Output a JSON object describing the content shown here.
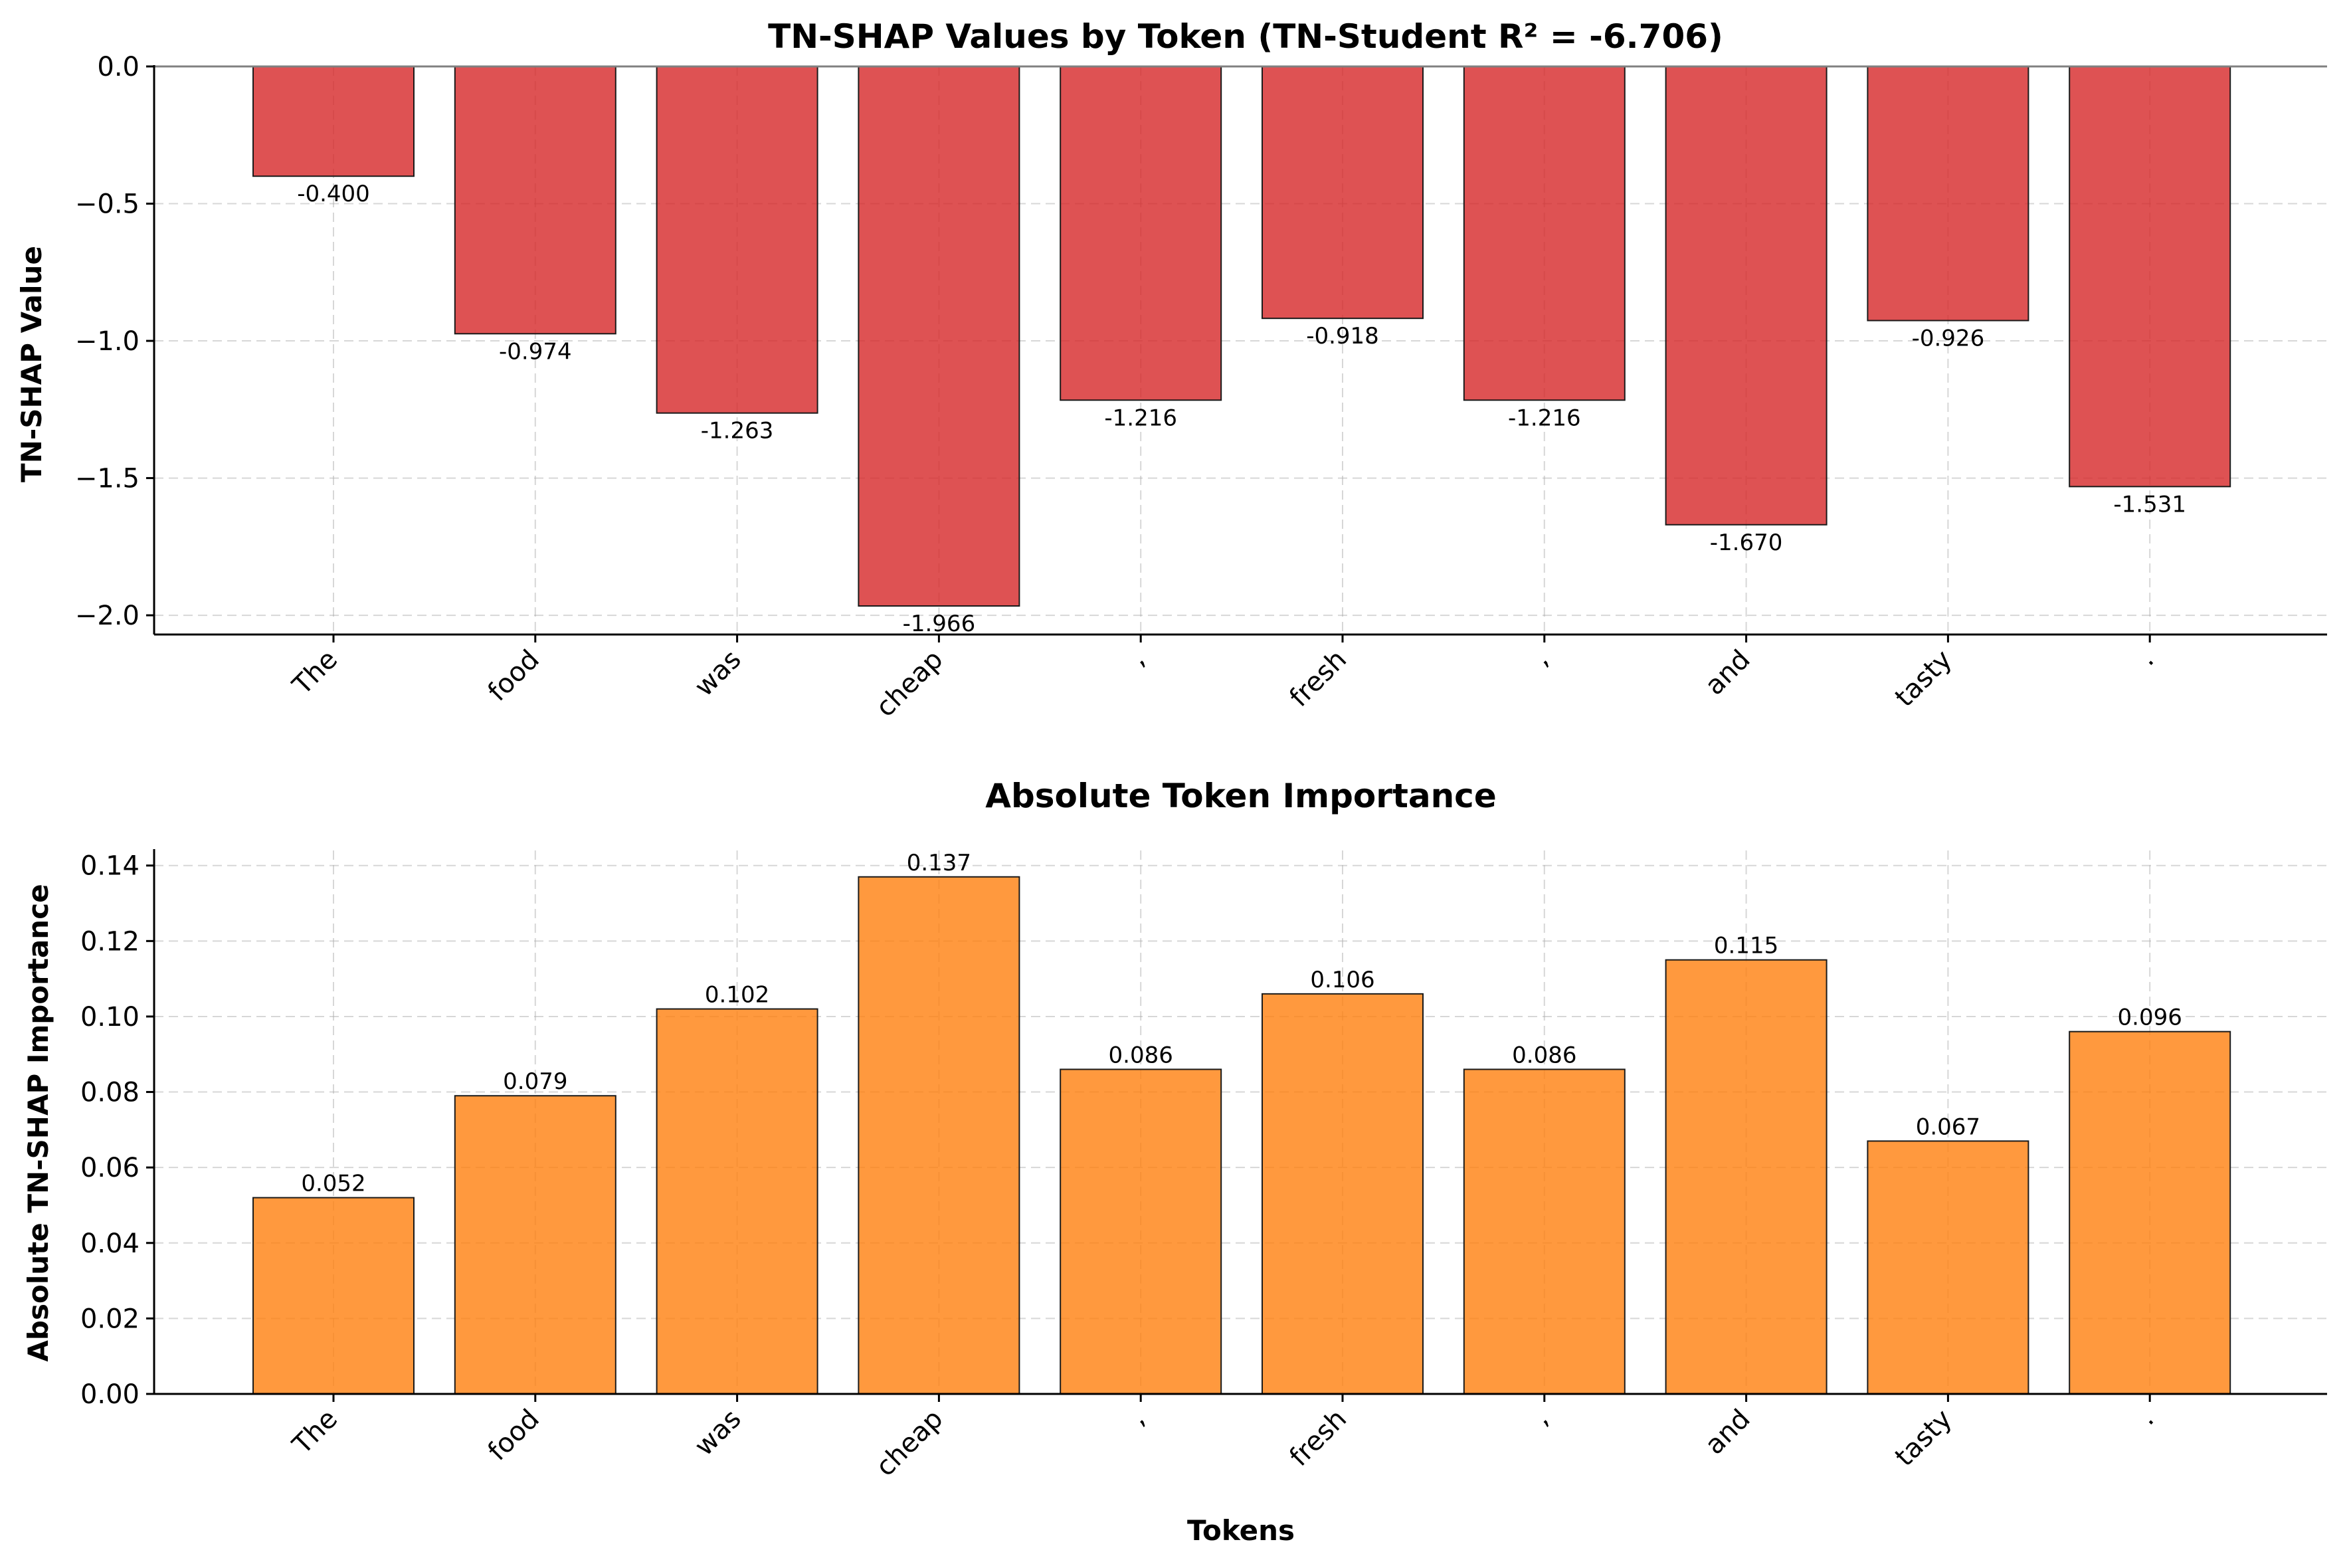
{
  "chart_data": [
    {
      "type": "bar",
      "title": "TN-SHAP Values by Token (TN-Student R² = -6.706)",
      "xlabel": "",
      "ylabel": "TN-SHAP Value",
      "categories": [
        "The",
        "food",
        "was",
        "cheap",
        ",",
        "fresh",
        ",",
        "and",
        "tasty",
        "."
      ],
      "values": [
        -0.4,
        -0.974,
        -1.263,
        -1.966,
        -1.216,
        -0.918,
        -1.216,
        -1.67,
        -0.926,
        -1.531
      ],
      "data_labels": [
        "-0.400",
        "-0.974",
        "-1.263",
        "-1.966",
        "-1.216",
        "-0.918",
        "-1.216",
        "-1.670",
        "-0.926",
        "-1.531"
      ],
      "ylim": [
        -2.07,
        0.0
      ],
      "yticks": [
        0.0,
        -0.5,
        -1.0,
        -1.5,
        -2.0
      ],
      "ytick_labels": [
        "0.0",
        "−0.5",
        "−1.0",
        "−1.5",
        "−2.0"
      ],
      "color": "#d62728",
      "grid": true
    },
    {
      "type": "bar",
      "title": "Absolute Token Importance",
      "xlabel": "Tokens",
      "ylabel": "Absolute TN-SHAP Importance",
      "categories": [
        "The",
        "food",
        "was",
        "cheap",
        ",",
        "fresh",
        ",",
        "and",
        "tasty",
        "."
      ],
      "values": [
        0.052,
        0.079,
        0.102,
        0.137,
        0.086,
        0.106,
        0.086,
        0.115,
        0.067,
        0.096
      ],
      "data_labels": [
        "0.052",
        "0.079",
        "0.102",
        "0.137",
        "0.086",
        "0.106",
        "0.086",
        "0.115",
        "0.067",
        "0.096"
      ],
      "ylim": [
        0.0,
        0.144
      ],
      "yticks": [
        0.0,
        0.02,
        0.04,
        0.06,
        0.08,
        0.1,
        0.12,
        0.14
      ],
      "ytick_labels": [
        "0.00",
        "0.02",
        "0.04",
        "0.06",
        "0.08",
        "0.10",
        "0.12",
        "0.14"
      ],
      "color": "#ff7f0e",
      "grid": true
    }
  ]
}
